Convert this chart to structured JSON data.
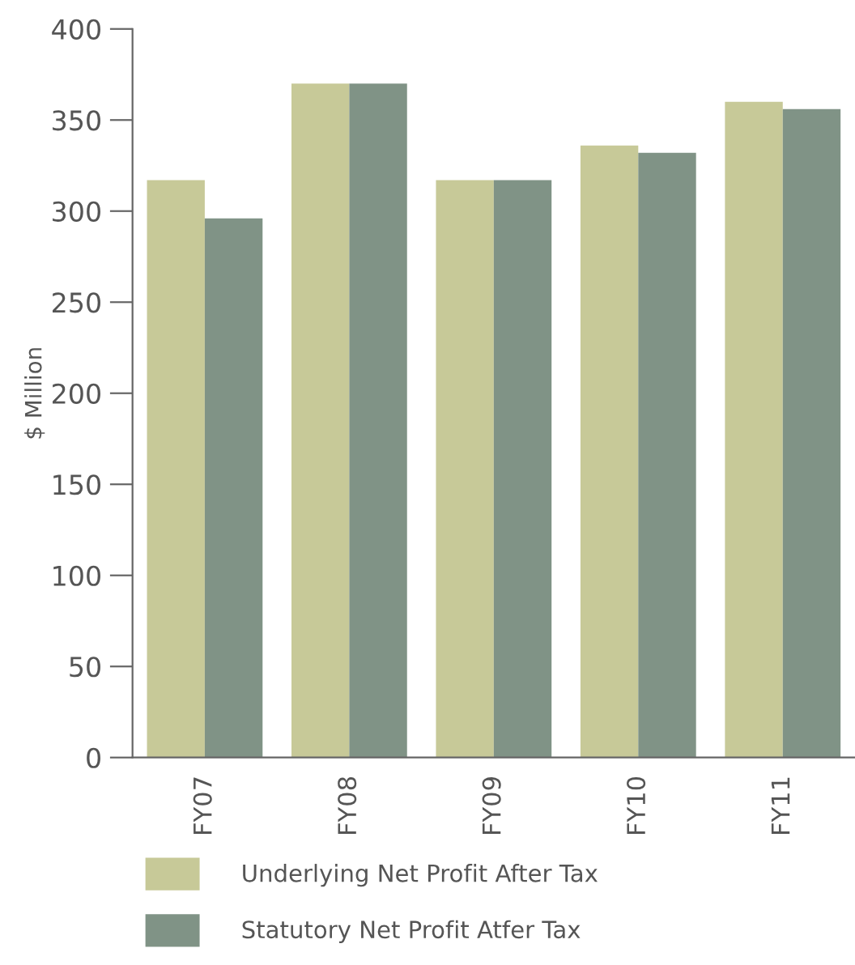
{
  "chart_data": {
    "type": "bar",
    "ylabel": "$ Million",
    "categories": [
      "FY07",
      "FY08",
      "FY09",
      "FY10",
      "FY11"
    ],
    "series": [
      {
        "name": "Underlying Net Profit After Tax",
        "color": "#c7c998",
        "values": [
          317,
          370,
          317,
          336,
          360
        ]
      },
      {
        "name": "Statutory Net Profit Atfer Tax",
        "color": "#809386",
        "values": [
          296,
          370,
          317,
          332,
          356
        ]
      }
    ],
    "ylim": [
      0,
      400
    ],
    "yticks": [
      0,
      50,
      100,
      150,
      200,
      250,
      300,
      350,
      400
    ],
    "grid": false,
    "legend": "bottom"
  }
}
